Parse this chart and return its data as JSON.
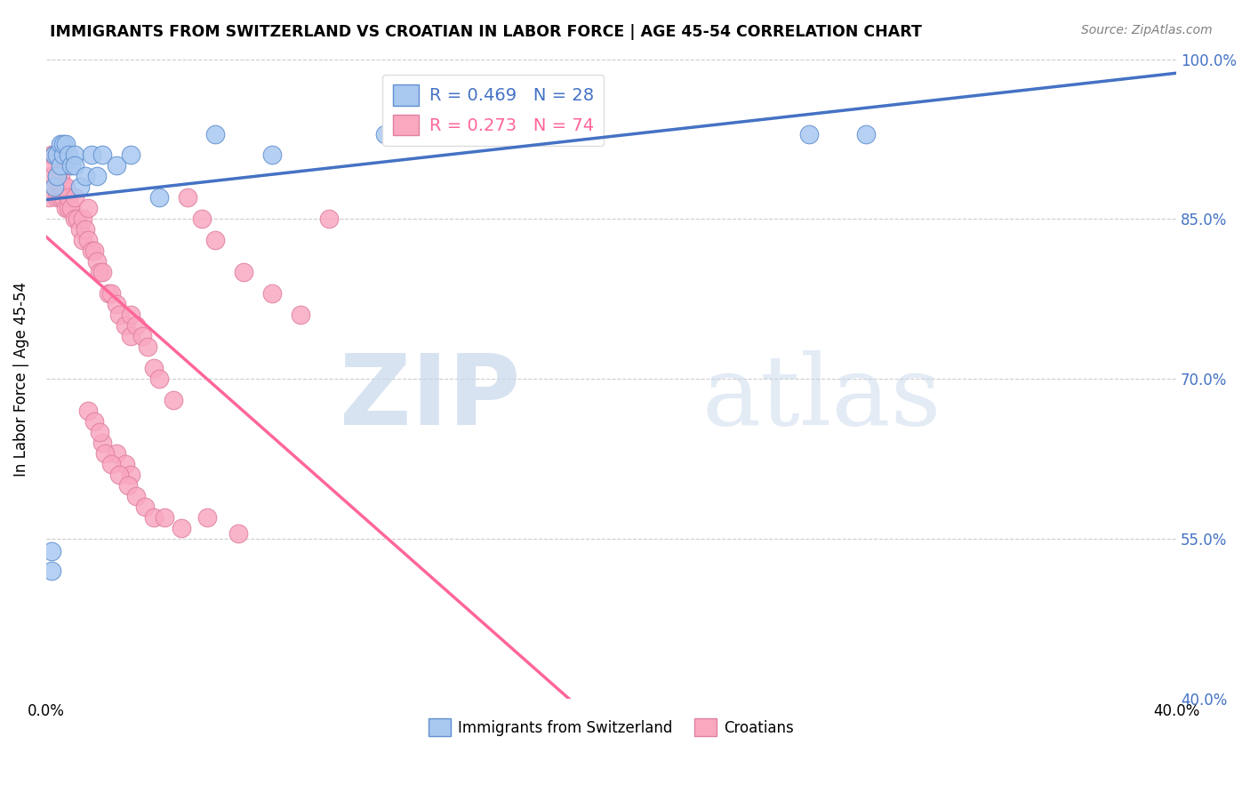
{
  "title": "IMMIGRANTS FROM SWITZERLAND VS CROATIAN IN LABOR FORCE | AGE 45-54 CORRELATION CHART",
  "source": "Source: ZipAtlas.com",
  "ylabel": "In Labor Force | Age 45-54",
  "xmin": 0.0,
  "xmax": 0.4,
  "ymin": 0.4,
  "ymax": 1.0,
  "xticks": [
    0.0,
    0.1,
    0.2,
    0.3,
    0.4
  ],
  "xtick_labels": [
    "0.0%",
    "",
    "",
    "",
    "40.0%"
  ],
  "yticks": [
    0.4,
    0.55,
    0.7,
    0.85,
    1.0
  ],
  "ytick_labels": [
    "40.0%",
    "55.0%",
    "70.0%",
    "85.0%",
    "100.0%"
  ],
  "gridline_y": [
    0.55,
    0.7,
    0.85,
    1.0
  ],
  "switzerland_color": "#A8C8F0",
  "croatian_color": "#F9A8C0",
  "switzerland_R": 0.469,
  "switzerland_N": 28,
  "croatian_R": 0.273,
  "croatian_N": 74,
  "switzerland_line_color": "#4472C4",
  "croatian_line_color": "#FF6699",
  "watermark_zip": "ZIP",
  "watermark_atlas": "atlas",
  "legend_label_swiss": "Immigrants from Switzerland",
  "legend_label_croatian": "Croatians",
  "swiss_x": [
    0.002,
    0.002,
    0.003,
    0.003,
    0.004,
    0.004,
    0.005,
    0.005,
    0.006,
    0.006,
    0.007,
    0.008,
    0.009,
    0.01,
    0.01,
    0.012,
    0.014,
    0.016,
    0.018,
    0.02,
    0.025,
    0.03,
    0.04,
    0.06,
    0.08,
    0.12,
    0.27,
    0.29
  ],
  "swiss_y": [
    0.538,
    0.52,
    0.88,
    0.91,
    0.89,
    0.91,
    0.9,
    0.92,
    0.91,
    0.92,
    0.92,
    0.91,
    0.9,
    0.91,
    0.9,
    0.88,
    0.89,
    0.91,
    0.89,
    0.91,
    0.9,
    0.91,
    0.87,
    0.93,
    0.91,
    0.93,
    0.93,
    0.93
  ],
  "croatian_x": [
    0.001,
    0.002,
    0.002,
    0.003,
    0.003,
    0.003,
    0.004,
    0.004,
    0.004,
    0.005,
    0.005,
    0.005,
    0.005,
    0.006,
    0.006,
    0.006,
    0.007,
    0.007,
    0.007,
    0.008,
    0.008,
    0.009,
    0.01,
    0.01,
    0.011,
    0.012,
    0.013,
    0.013,
    0.014,
    0.015,
    0.015,
    0.016,
    0.017,
    0.018,
    0.019,
    0.02,
    0.022,
    0.023,
    0.025,
    0.026,
    0.028,
    0.03,
    0.03,
    0.032,
    0.034,
    0.036,
    0.038,
    0.04,
    0.045,
    0.05,
    0.055,
    0.06,
    0.07,
    0.08,
    0.09,
    0.1,
    0.02,
    0.025,
    0.028,
    0.03,
    0.015,
    0.017,
    0.019,
    0.021,
    0.023,
    0.026,
    0.029,
    0.032,
    0.035,
    0.038,
    0.042,
    0.048,
    0.057,
    0.068
  ],
  "croatian_y": [
    0.87,
    0.89,
    0.91,
    0.88,
    0.9,
    0.91,
    0.87,
    0.89,
    0.91,
    0.87,
    0.88,
    0.89,
    0.91,
    0.87,
    0.88,
    0.9,
    0.86,
    0.88,
    0.9,
    0.86,
    0.87,
    0.86,
    0.85,
    0.87,
    0.85,
    0.84,
    0.83,
    0.85,
    0.84,
    0.83,
    0.86,
    0.82,
    0.82,
    0.81,
    0.8,
    0.8,
    0.78,
    0.78,
    0.77,
    0.76,
    0.75,
    0.74,
    0.76,
    0.75,
    0.74,
    0.73,
    0.71,
    0.7,
    0.68,
    0.87,
    0.85,
    0.83,
    0.8,
    0.78,
    0.76,
    0.85,
    0.64,
    0.63,
    0.62,
    0.61,
    0.67,
    0.66,
    0.65,
    0.63,
    0.62,
    0.61,
    0.6,
    0.59,
    0.58,
    0.57,
    0.57,
    0.56,
    0.57,
    0.555
  ]
}
